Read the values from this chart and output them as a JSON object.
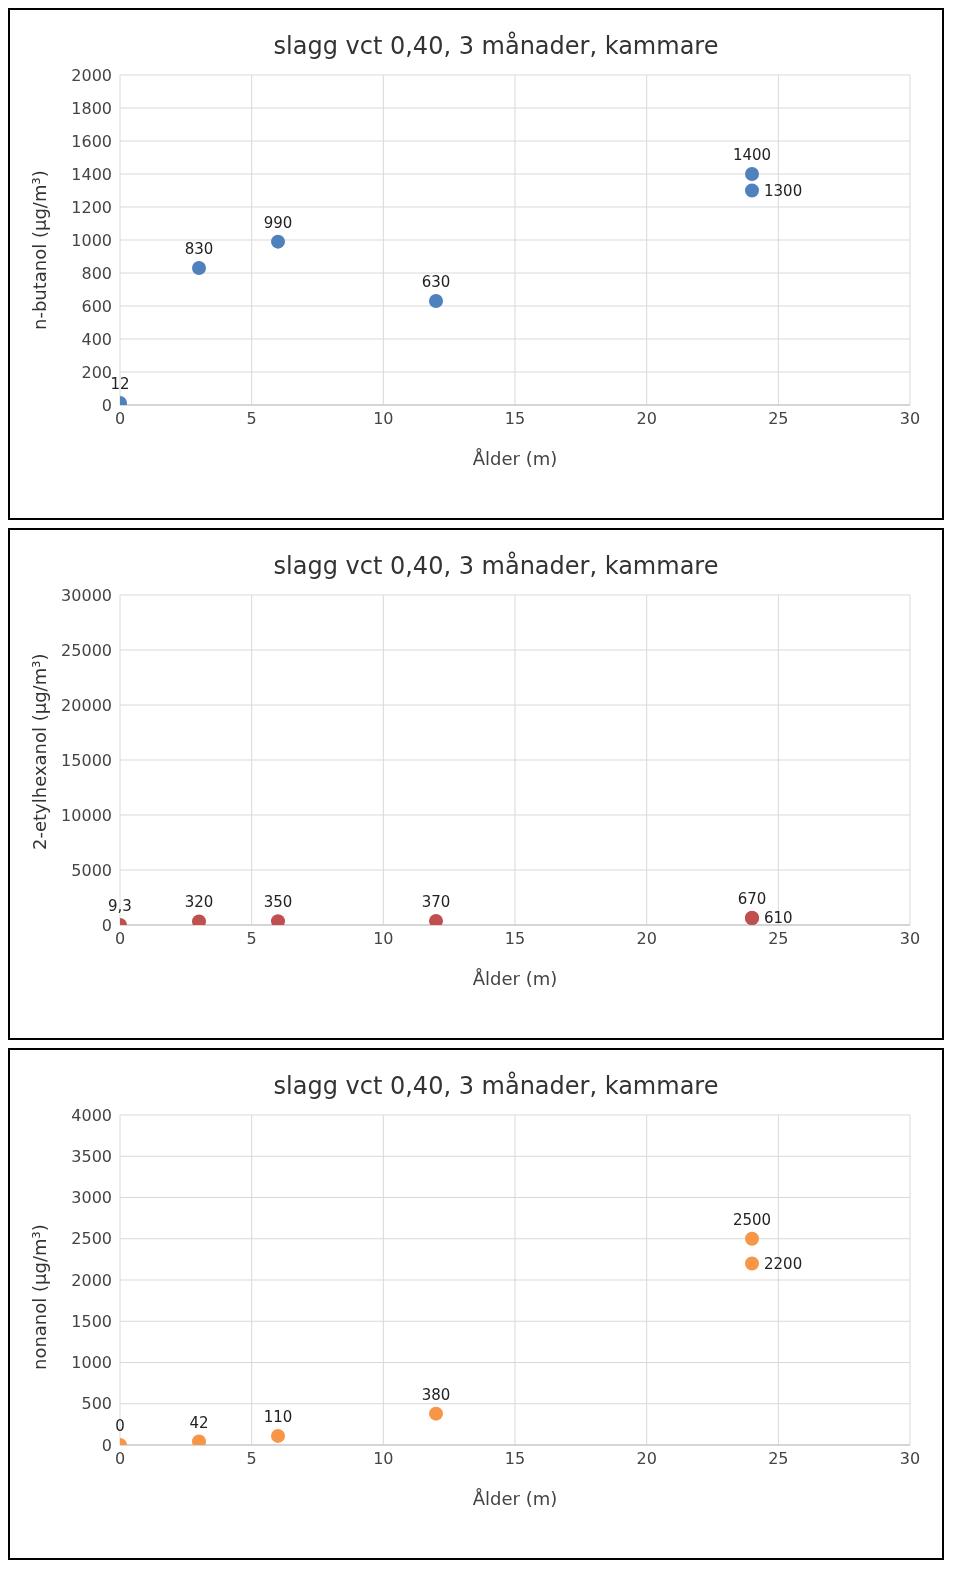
{
  "chart_data": [
    {
      "type": "scatter",
      "title": "slagg vct 0,40, 3 månader, kammare",
      "xlabel": "Ålder (m)",
      "ylabel": "n-butanol (µg/m³)",
      "x": [
        0,
        3,
        6,
        12,
        24,
        24
      ],
      "values": [
        12,
        830,
        990,
        630,
        1400,
        1300
      ],
      "value_labels": [
        "12",
        "830",
        "990",
        "630",
        "1400",
        "1300"
      ],
      "color": "#4f81bd",
      "marker": "circle",
      "xlim": [
        0,
        30
      ],
      "xticks": [
        0,
        5,
        10,
        15,
        20,
        25,
        30
      ],
      "ylim": [
        0,
        2000
      ],
      "yticks": [
        0,
        200,
        400,
        600,
        800,
        1000,
        1200,
        1400,
        1600,
        1800,
        2000
      ],
      "grid": true
    },
    {
      "type": "scatter",
      "title": "slagg vct 0,40, 3 månader, kammare",
      "xlabel": "Ålder (m)",
      "ylabel": "2-etylhexanol (µg/m³)",
      "x": [
        0,
        3,
        6,
        12,
        24,
        24
      ],
      "values": [
        9.3,
        320,
        350,
        370,
        670,
        610
      ],
      "value_labels": [
        "9,3",
        "320",
        "350",
        "370",
        "670",
        "610"
      ],
      "color": "#c0504d",
      "marker": "circle",
      "xlim": [
        0,
        30
      ],
      "xticks": [
        0,
        5,
        10,
        15,
        20,
        25,
        30
      ],
      "ylim": [
        0,
        30000
      ],
      "yticks": [
        0,
        5000,
        10000,
        15000,
        20000,
        25000,
        30000
      ],
      "grid": true
    },
    {
      "type": "scatter",
      "title": "slagg vct 0,40, 3 månader, kammare",
      "xlabel": "Ålder (m)",
      "ylabel": "nonanol (µg/m³)",
      "x": [
        0,
        3,
        6,
        12,
        24,
        24
      ],
      "values": [
        0,
        42,
        110,
        380,
        2500,
        2200
      ],
      "value_labels": [
        "0",
        "42",
        "110",
        "380",
        "2500",
        "2200"
      ],
      "color": "#f79646",
      "marker": "circle",
      "xlim": [
        0,
        30
      ],
      "xticks": [
        0,
        5,
        10,
        15,
        20,
        25,
        30
      ],
      "ylim": [
        0,
        4000
      ],
      "yticks": [
        0,
        500,
        1000,
        1500,
        2000,
        2500,
        3000,
        3500,
        4000
      ],
      "grid": true
    }
  ]
}
